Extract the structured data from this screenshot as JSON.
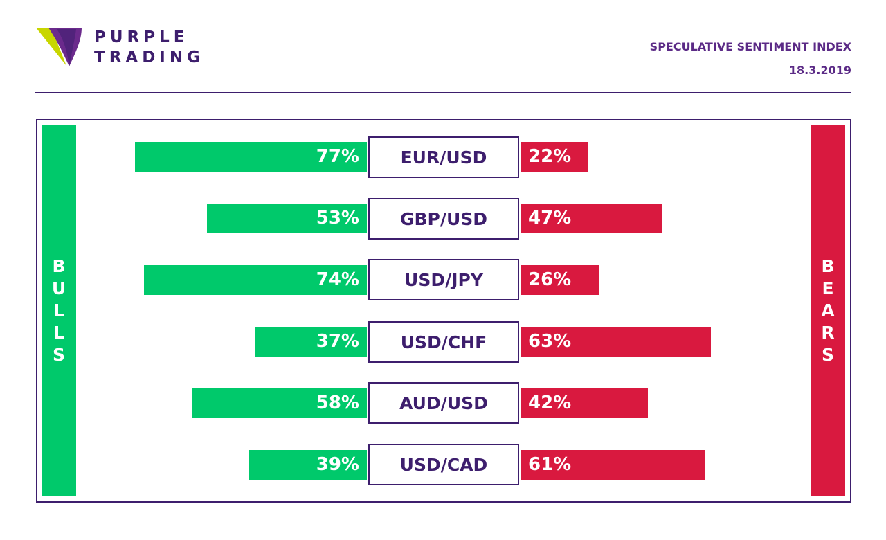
{
  "header": {
    "brand_line1": "PURPLE",
    "brand_line2": "TRADING",
    "title": "SPECULATIVE SENTIMENT INDEX",
    "date": "18.3.2019"
  },
  "side_labels": {
    "bulls": [
      "B",
      "U",
      "L",
      "L",
      "S"
    ],
    "bears": [
      "B",
      "E",
      "A",
      "R",
      "S"
    ]
  },
  "colors": {
    "bulls": "#00c96b",
    "bears": "#d9193f",
    "brand": "#3d1e6d"
  },
  "chart_data": {
    "type": "bar",
    "categories": [
      "EUR/USD",
      "GBP/USD",
      "USD/JPY",
      "USD/CHF",
      "AUD/USD",
      "USD/CAD"
    ],
    "series": [
      {
        "name": "BULLS",
        "values": [
          77,
          53,
          74,
          37,
          58,
          39
        ]
      },
      {
        "name": "BEARS",
        "values": [
          22,
          47,
          26,
          63,
          42,
          61
        ]
      }
    ],
    "labels": {
      "bulls": [
        "77%",
        "53%",
        "74%",
        "37%",
        "58%",
        "39%"
      ],
      "bears": [
        "22%",
        "47%",
        "26%",
        "63%",
        "42%",
        "61%"
      ]
    }
  }
}
